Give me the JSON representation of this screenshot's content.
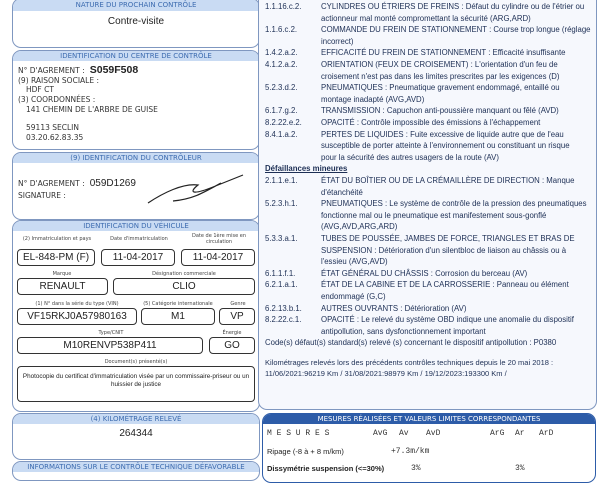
{
  "nature": {
    "header": "Nature du prochain contrôle",
    "value": "Contre-visite"
  },
  "centre": {
    "header": "Identification du centre de contrôle",
    "agrement_label": "N° D'AGREMENT :",
    "agrement": "S059F508",
    "raison_label": "(9) RAISON SOCIALE :",
    "raison": "HDF CT",
    "coord_label": "(3) COORDONNÉES :",
    "address": "141 CHEMIN DE L'ARBRE DE GUISE",
    "city": "59113 SECLIN",
    "phone": "03.20.62.83.35"
  },
  "controleur": {
    "header": "(9) Identification du contrôleur",
    "agrement_label": "N° D'AGREMENT :",
    "agrement": "059D1269",
    "signature_label": "SIGNATURE :"
  },
  "vehicule": {
    "header": "Identification du véhicule",
    "immat_label": "(2) Immatriculation et pays",
    "immat": "EL-848-PM (F)",
    "date_immat_label": "Date d'immatriculation",
    "date_immat": "11-04-2017",
    "date_circ_label": "Date de 1ère mise en circulation",
    "date_circ": "11-04-2017",
    "marque_label": "Marque",
    "marque": "RENAULT",
    "designation_label": "Désignation commerciale",
    "designation": "CLIO",
    "vin_label": "(1) N° dans la série du type (VIN)",
    "vin": "VF15RKJ0A57980163",
    "categorie_label": "(5) Catégorie internationale",
    "categorie": "M1",
    "genre_label": "Genre",
    "genre": "VP",
    "type_label": "Type/CNIT",
    "type": "M10RENVP538P411",
    "energie_label": "Énergie",
    "energie": "GO",
    "documents_label": "Document(s) présenté(s)",
    "documents": "Photocopie du certificat d'immatriculation visée par un commissaire-priseur ou un huissier de justice"
  },
  "kilometrage": {
    "header": "(4) Kilométrage relevé",
    "value": "264344"
  },
  "informations": {
    "header": "Informations sur le contrôle technique défavorable"
  },
  "defauts": {
    "lines": [
      {
        "code": "1.1.16.c.2.",
        "text": "CYLINDRES OU ÉTRIERS DE FREINS : Défaut du cylindre ou de l'étrier ou"
      },
      {
        "code": "",
        "text": "actionneur mal monté compromettant la sécurité (ARG,ARD)"
      },
      {
        "code": "1.1.6.c.2.",
        "text": "COMMANDE DU FREIN DE STATIONNEMENT : Course trop longue (réglage"
      },
      {
        "code": "",
        "text": "incorrect)"
      },
      {
        "code": "1.4.2.a.2.",
        "text": "EFFICACITÉ DU FREIN DE STATIONNEMENT : Efficacité insuffisante"
      },
      {
        "code": "4.1.2.a.2.",
        "text": "ORIENTATION (FEUX DE CROISEMENT) : L'orientation d'un feu de"
      },
      {
        "code": "",
        "text": "croisement n'est pas dans les limites prescrites par les exigences (D)"
      },
      {
        "code": "5.2.3.d.2.",
        "text": "PNEUMATIQUES : Pneumatique gravement endommagé, entaillé ou"
      },
      {
        "code": "",
        "text": "montage inadapté (AVG,AVD)"
      },
      {
        "code": "6.1.7.g.2.",
        "text": "TRANSMISSION : Capuchon anti-poussière manquant ou fêlé (AVD)"
      },
      {
        "code": "8.2.22.e.2.",
        "text": "OPACITÉ : Contrôle impossible des émissions à l'échappement"
      },
      {
        "code": "8.4.1.a.2.",
        "text": "PERTES DE LIQUIDES : Fuite excessive de liquide autre que de l'eau"
      },
      {
        "code": "",
        "text": "susceptible de porter atteinte à l'environnement ou constituant un risque"
      },
      {
        "code": "",
        "text": "pour la sécurité des autres usagers de la route (AV)"
      }
    ],
    "mineures_title": "Défaillances mineures",
    "mineures": [
      {
        "code": "2.1.1.e.1.",
        "text": "ÉTAT DU BOÎTIER OU DE LA CRÉMAILLÈRE DE DIRECTION : Manque"
      },
      {
        "code": "",
        "text": "d'étanchéité"
      },
      {
        "code": "5.2.3.h.1.",
        "text": "PNEUMATIQUES : Le système de contrôle de la pression des pneumatiques"
      },
      {
        "code": "",
        "text": "fonctionne mal ou le pneumatique est manifestement sous-gonflé"
      },
      {
        "code": "",
        "text": "(AVG,AVD,ARG,ARD)"
      },
      {
        "code": "5.3.3.a.1.",
        "text": "TUBES DE POUSSÉE, JAMBES DE FORCE, TRIANGLES ET BRAS DE"
      },
      {
        "code": "",
        "text": "SUSPENSION : Détérioration d'un silentbloc de liaison au châssis ou à"
      },
      {
        "code": "",
        "text": "l'essieu (AVG,AVD)"
      },
      {
        "code": "6.1.1.f.1.",
        "text": "ÉTAT GÉNÉRAL DU CHÂSSIS : Corrosion du berceau (AV)"
      },
      {
        "code": "6.2.1.a.1.",
        "text": "ÉTAT DE LA CABINE ET DE LA CARROSSERIE : Panneau ou élément"
      },
      {
        "code": "",
        "text": "endommagé (G,C)"
      },
      {
        "code": "6.2.13.b.1.",
        "text": "AUTRES OUVRANTS : Détérioration (AV)"
      },
      {
        "code": "8.2.22.c.1.",
        "text": "OPACITÉ : Le relevé du système OBD indique une anomalie du dispositif"
      },
      {
        "code": "",
        "text": "antipollution, sans dysfonctionnement important"
      }
    ],
    "code_defaut": "Code(s) défaut(s) standard(s) relevé (s) concernant le dispositif antipollution : P0380",
    "km_history_1": "Kilométrages relevés lors des précédents contrôles techniques depuis le 20 mai 2018 :",
    "km_history_2": "11/06/2021:96219 Km / 31/08/2021:98979 Km / 19/12/2023:193300 Km /"
  },
  "mesures": {
    "header": "Mesures réalisées et valeurs limites correspondantes",
    "title": "M E S U R E S",
    "cols": [
      "AvG",
      "Av",
      "AvD",
      "ArG",
      "Ar",
      "ArD"
    ],
    "ripage_label": "Ripage (-8 à + 8 m/km)",
    "ripage_value": "+7.3m/km",
    "dissym_label": "Dissymétrie suspension (<=30%)",
    "dissym_av": "3%",
    "dissym_ar": "3%"
  },
  "colors": {
    "header_bg": "#c9dbf3",
    "header_text": "#3d6cb0",
    "mesures_header": "#2d5ca8",
    "right_text": "#1d2f55"
  }
}
